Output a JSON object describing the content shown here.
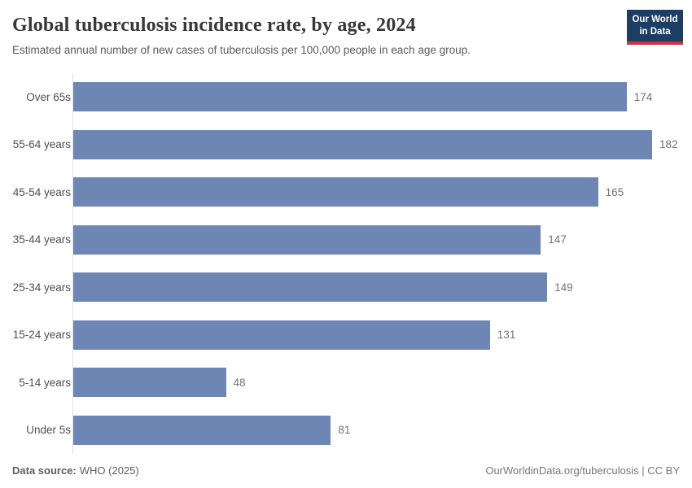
{
  "header": {
    "title": "Global tuberculosis incidence rate, by age, 2024",
    "subtitle": "Estimated annual number of new cases of tuberculosis per 100,000 people in each age group.",
    "logo": {
      "line1": "Our World",
      "line2": "in Data",
      "bg_color": "#1d3d63",
      "accent_color": "#c7353f"
    }
  },
  "chart_data": {
    "type": "bar",
    "orientation": "horizontal",
    "title": "Global tuberculosis incidence rate, by age, 2024",
    "subtitle": "Estimated annual number of new cases of tuberculosis per 100,000 people in each age group.",
    "categories": [
      "Over 65s",
      "55-64 years",
      "45-54 years",
      "35-44 years",
      "25-34 years",
      "15-24 years",
      "5-14 years",
      "Under 5s"
    ],
    "values": [
      174,
      182,
      165,
      147,
      149,
      131,
      48,
      81
    ],
    "xlabel": "",
    "ylabel": "",
    "xlim": [
      0,
      182
    ],
    "grid": false,
    "value_labels": true,
    "bar_color": "#6d86b4",
    "axis_line_color": "#dedede"
  },
  "footer": {
    "source_label": "Data source:",
    "source_value": "WHO (2025)",
    "credit": "OurWorldinData.org/tuberculosis | CC BY"
  }
}
